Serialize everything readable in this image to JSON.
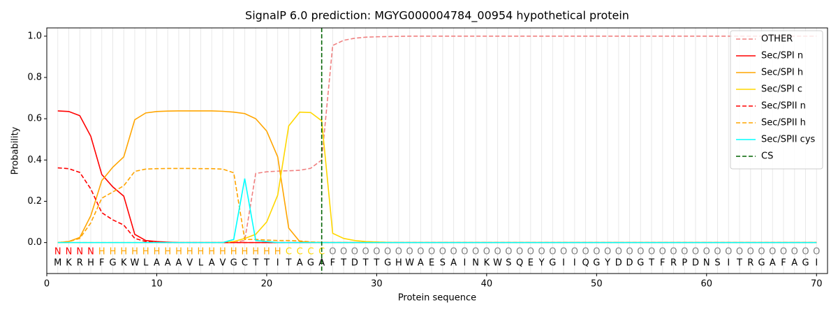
{
  "chart_data": {
    "type": "line",
    "title": "SignalP 6.0 prediction: MGYG000004784_00954 hypothetical protein",
    "xlabel": "Protein sequence",
    "ylabel": "Probability",
    "x": [
      1,
      2,
      3,
      4,
      5,
      6,
      7,
      8,
      9,
      10,
      11,
      12,
      13,
      14,
      15,
      16,
      17,
      18,
      19,
      20,
      21,
      22,
      23,
      24,
      25,
      26,
      27,
      28,
      29,
      30,
      31,
      32,
      33,
      34,
      35,
      36,
      37,
      38,
      39,
      40,
      41,
      42,
      43,
      44,
      45,
      46,
      47,
      48,
      49,
      50,
      51,
      52,
      53,
      54,
      55,
      56,
      57,
      58,
      59,
      60,
      61,
      62,
      63,
      64,
      65,
      66,
      67,
      68,
      69,
      70
    ],
    "sequence": [
      "M",
      "K",
      "R",
      "H",
      "F",
      "G",
      "K",
      "W",
      "L",
      "A",
      "A",
      "A",
      "V",
      "L",
      "A",
      "V",
      "G",
      "C",
      "T",
      "T",
      "I",
      "T",
      "A",
      "G",
      "A",
      "F",
      "T",
      "D",
      "T",
      "T",
      "G",
      "H",
      "W",
      "A",
      "E",
      "S",
      "A",
      "I",
      "N",
      "K",
      "W",
      "S",
      "Q",
      "E",
      "Y",
      "G",
      "I",
      "I",
      "Q",
      "G",
      "Y",
      "D",
      "D",
      "G",
      "T",
      "F",
      "R",
      "P",
      "D",
      "N",
      "S",
      "I",
      "T",
      "R",
      "G",
      "A",
      "F",
      "A",
      "G",
      "I"
    ],
    "region_labels": [
      "N",
      "N",
      "N",
      "N",
      "H",
      "H",
      "H",
      "H",
      "H",
      "H",
      "H",
      "H",
      "H",
      "H",
      "H",
      "H",
      "H",
      "H",
      "H",
      "H",
      "H",
      "C",
      "C",
      "C",
      "C",
      "O",
      "O",
      "O",
      "O",
      "O",
      "O",
      "O",
      "O",
      "O",
      "O",
      "O",
      "O",
      "O",
      "O",
      "O",
      "O",
      "O",
      "O",
      "O",
      "O",
      "O",
      "O",
      "O",
      "O",
      "O",
      "O",
      "O",
      "O",
      "O",
      "O",
      "O",
      "O",
      "O",
      "O",
      "O",
      "O",
      "O",
      "O",
      "O",
      "O",
      "O",
      "O",
      "O",
      "O",
      "O"
    ],
    "region_colors": {
      "N": "#ff0000",
      "H": "#ffa500",
      "C": "#ffd700",
      "O": "#808080"
    },
    "series": [
      {
        "name": "OTHER",
        "color": "#f08080",
        "dashed": true,
        "values": [
          0,
          0,
          0,
          0,
          0,
          0,
          0,
          0,
          0,
          0,
          0,
          0,
          0,
          0,
          0,
          0,
          0,
          0.01,
          0.335,
          0.343,
          0.346,
          0.348,
          0.35,
          0.36,
          0.4,
          0.955,
          0.98,
          0.99,
          0.995,
          0.997,
          0.998,
          0.999,
          1,
          1,
          1,
          1,
          1,
          1,
          1,
          1,
          1,
          1,
          1,
          1,
          1,
          1,
          1,
          1,
          1,
          1,
          1,
          1,
          1,
          1,
          1,
          1,
          1,
          1,
          1,
          1,
          1,
          1,
          1,
          1,
          1,
          1,
          1,
          1,
          1,
          1
        ]
      },
      {
        "name": "Sec/SPI n",
        "color": "#ff0000",
        "dashed": false,
        "values": [
          0.638,
          0.635,
          0.615,
          0.515,
          0.33,
          0.27,
          0.225,
          0.04,
          0.01,
          0.005,
          0.002,
          0,
          0,
          0,
          0,
          0,
          0,
          0,
          0,
          0,
          0,
          0,
          0,
          0,
          0,
          0,
          0,
          0,
          0,
          0,
          0,
          0,
          0,
          0,
          0,
          0,
          0,
          0,
          0,
          0,
          0,
          0,
          0,
          0,
          0,
          0,
          0,
          0,
          0,
          0,
          0,
          0,
          0,
          0,
          0,
          0,
          0,
          0,
          0,
          0,
          0,
          0,
          0,
          0,
          0,
          0,
          0,
          0,
          0,
          0
        ]
      },
      {
        "name": "Sec/SPI h",
        "color": "#ffa500",
        "dashed": false,
        "values": [
          0,
          0.005,
          0.025,
          0.13,
          0.3,
          0.365,
          0.415,
          0.595,
          0.628,
          0.635,
          0.637,
          0.638,
          0.638,
          0.638,
          0.638,
          0.636,
          0.632,
          0.625,
          0.6,
          0.54,
          0.415,
          0.07,
          0.005,
          0.001,
          0,
          0,
          0,
          0,
          0,
          0,
          0,
          0,
          0,
          0,
          0,
          0,
          0,
          0,
          0,
          0,
          0,
          0,
          0,
          0,
          0,
          0,
          0,
          0,
          0,
          0,
          0,
          0,
          0,
          0,
          0,
          0,
          0,
          0,
          0,
          0,
          0,
          0,
          0,
          0,
          0,
          0,
          0,
          0,
          0,
          0
        ]
      },
      {
        "name": "Sec/SPI c",
        "color": "#ffd700",
        "dashed": false,
        "values": [
          0,
          0,
          0,
          0,
          0,
          0,
          0,
          0,
          0,
          0,
          0,
          0,
          0,
          0,
          0,
          0,
          0.005,
          0.02,
          0.04,
          0.1,
          0.23,
          0.565,
          0.632,
          0.63,
          0.59,
          0.045,
          0.02,
          0.01,
          0.005,
          0.003,
          0.001,
          0,
          0,
          0,
          0,
          0,
          0,
          0,
          0,
          0,
          0,
          0,
          0,
          0,
          0,
          0,
          0,
          0,
          0,
          0,
          0,
          0,
          0,
          0,
          0,
          0,
          0,
          0,
          0,
          0,
          0,
          0,
          0,
          0,
          0,
          0,
          0,
          0,
          0,
          0
        ]
      },
      {
        "name": "Sec/SPII n",
        "color": "#ff0000",
        "dashed": true,
        "values": [
          0.362,
          0.358,
          0.34,
          0.26,
          0.145,
          0.11,
          0.085,
          0.02,
          0.005,
          0.002,
          0,
          0,
          0,
          0,
          0,
          0,
          0,
          0,
          0,
          0,
          0,
          0,
          0,
          0,
          0,
          0,
          0,
          0,
          0,
          0,
          0,
          0,
          0,
          0,
          0,
          0,
          0,
          0,
          0,
          0,
          0,
          0,
          0,
          0,
          0,
          0,
          0,
          0,
          0,
          0,
          0,
          0,
          0,
          0,
          0,
          0,
          0,
          0,
          0,
          0,
          0,
          0,
          0,
          0,
          0,
          0,
          0,
          0,
          0,
          0
        ]
      },
      {
        "name": "Sec/SPII h",
        "color": "#ffa500",
        "dashed": true,
        "values": [
          0,
          0.005,
          0.02,
          0.095,
          0.215,
          0.245,
          0.275,
          0.345,
          0.356,
          0.358,
          0.359,
          0.359,
          0.359,
          0.358,
          0.358,
          0.356,
          0.338,
          0.015,
          0.015,
          0.012,
          0.01,
          0.01,
          0.008,
          0.003,
          0.001,
          0,
          0,
          0,
          0,
          0,
          0,
          0,
          0,
          0,
          0,
          0,
          0,
          0,
          0,
          0,
          0,
          0,
          0,
          0,
          0,
          0,
          0,
          0,
          0,
          0,
          0,
          0,
          0,
          0,
          0,
          0,
          0,
          0,
          0,
          0,
          0,
          0,
          0,
          0,
          0,
          0,
          0,
          0,
          0,
          0
        ]
      },
      {
        "name": "Sec/SPII cys",
        "color": "#00ffff",
        "dashed": false,
        "values": [
          0,
          0,
          0,
          0,
          0,
          0,
          0,
          0,
          0,
          0,
          0,
          0,
          0,
          0,
          0,
          0,
          0.015,
          0.31,
          0.01,
          0.005,
          0,
          0,
          0,
          0,
          0,
          0,
          0,
          0,
          0,
          0,
          0,
          0,
          0,
          0,
          0,
          0,
          0,
          0,
          0,
          0,
          0,
          0,
          0,
          0,
          0,
          0,
          0,
          0,
          0,
          0,
          0,
          0,
          0,
          0,
          0,
          0,
          0,
          0,
          0,
          0,
          0,
          0,
          0,
          0,
          0,
          0,
          0,
          0,
          0,
          0
        ]
      }
    ],
    "markers": [
      {
        "name": "CS",
        "x": 25,
        "color": "#006400"
      }
    ],
    "xlim": [
      0,
      71
    ],
    "ylim": [
      -0.15,
      1.04
    ],
    "xticks": [
      0,
      10,
      20,
      30,
      40,
      50,
      60,
      70
    ],
    "yticks": [
      {
        "value": 0,
        "label": "0.0"
      },
      {
        "value": 0.2,
        "label": "0.2"
      },
      {
        "value": 0.4,
        "label": "0.4"
      },
      {
        "value": 0.6,
        "label": "0.6"
      },
      {
        "value": 0.8,
        "label": "0.8"
      },
      {
        "value": 1,
        "label": "1.0"
      }
    ],
    "position_grid": true,
    "legend": "upper right"
  }
}
